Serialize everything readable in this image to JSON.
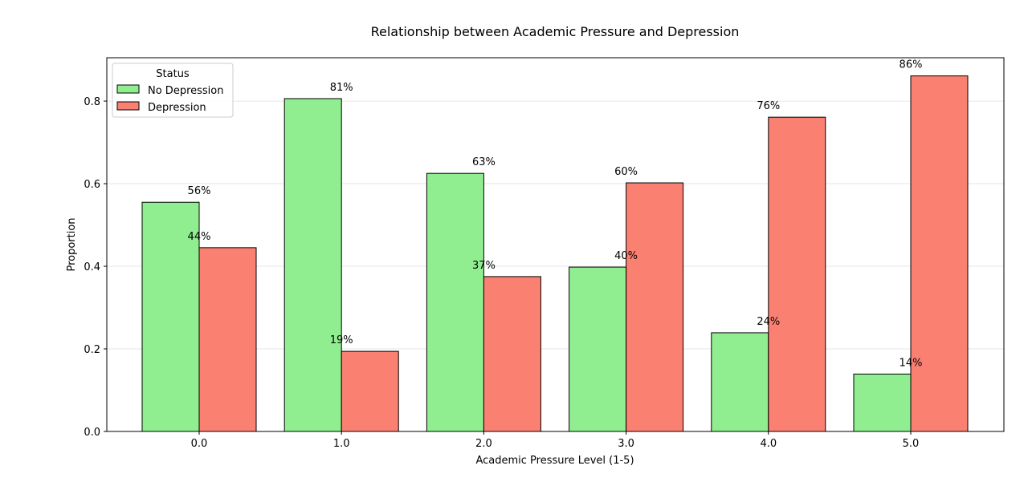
{
  "chart_data": {
    "type": "bar",
    "title": "Relationship between Academic Pressure and Depression",
    "xlabel": "Academic Pressure Level (1-5)",
    "ylabel": "Proportion",
    "categories": [
      "0.0",
      "1.0",
      "2.0",
      "3.0",
      "4.0",
      "5.0"
    ],
    "series": [
      {
        "name": "No Depression",
        "color": "#90ee90",
        "values": [
          0.555,
          0.806,
          0.625,
          0.398,
          0.239,
          0.139
        ],
        "labels": [
          "56%",
          "81%",
          "63%",
          "40%",
          "24%",
          "14%"
        ]
      },
      {
        "name": "Depression",
        "color": "#fa8072",
        "values": [
          0.445,
          0.194,
          0.375,
          0.602,
          0.761,
          0.861
        ],
        "labels": [
          "44%",
          "19%",
          "37%",
          "60%",
          "76%",
          "86%"
        ]
      }
    ],
    "ylim": [
      0,
      0.905
    ],
    "yticks": [
      "0.0",
      "0.2",
      "0.4",
      "0.6",
      "0.8"
    ],
    "ytick_values": [
      0,
      0.2,
      0.4,
      0.6,
      0.8
    ],
    "grid": "y",
    "legend": {
      "title": "Status",
      "placement": "top-left"
    }
  }
}
